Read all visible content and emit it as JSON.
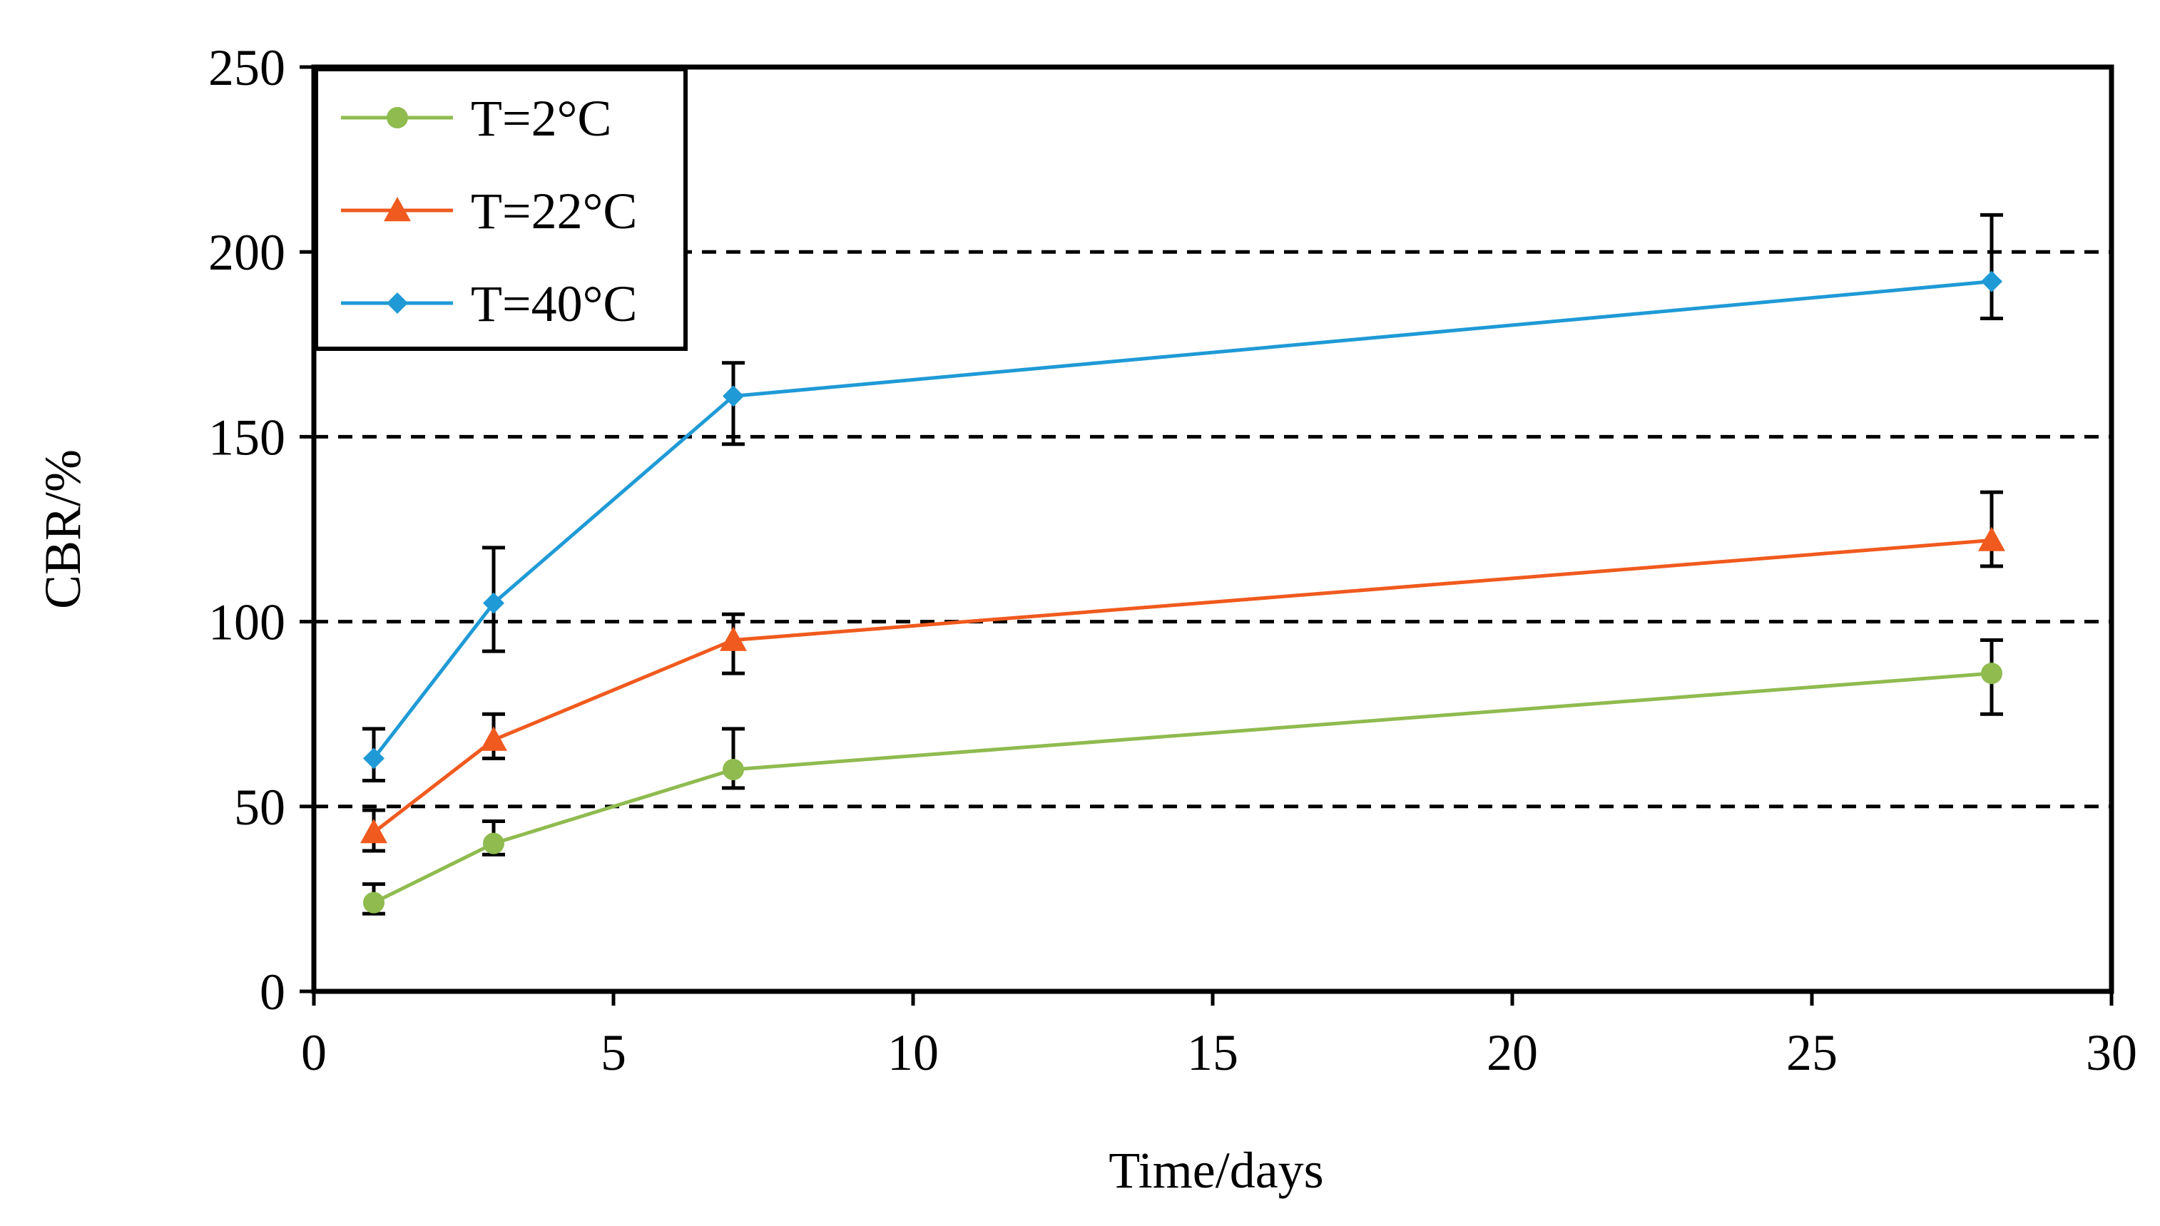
{
  "chart_data": {
    "type": "line",
    "title": "",
    "xlabel": "Time/days",
    "ylabel": "CBR/%",
    "xlim": [
      0,
      30
    ],
    "ylim": [
      0,
      250
    ],
    "xticks": [
      0,
      5,
      10,
      15,
      20,
      25,
      30
    ],
    "yticks": [
      0,
      50,
      100,
      150,
      200,
      250
    ],
    "grid": "horizontal dashed",
    "legend_position": "top-left",
    "x": [
      1,
      3,
      7,
      28
    ],
    "series": [
      {
        "name": "T=2°C",
        "color": "#8fbb4f",
        "marker": "circle",
        "values": [
          24,
          40,
          60,
          86
        ],
        "error": [
          [
            21,
            29
          ],
          [
            37,
            46
          ],
          [
            55,
            71
          ],
          [
            75,
            95
          ]
        ]
      },
      {
        "name": "T=22°C",
        "color": "#f05a1e",
        "marker": "triangle",
        "values": [
          43,
          68,
          95,
          122
        ],
        "error": [
          [
            38,
            49
          ],
          [
            63,
            75
          ],
          [
            86,
            102
          ],
          [
            115,
            135
          ]
        ]
      },
      {
        "name": "T=40°C",
        "color": "#1f9ad6",
        "marker": "diamond",
        "values": [
          63,
          105,
          161,
          192
        ],
        "error": [
          [
            57,
            71
          ],
          [
            92,
            120
          ],
          [
            148,
            170
          ],
          [
            182,
            210
          ]
        ]
      }
    ]
  }
}
